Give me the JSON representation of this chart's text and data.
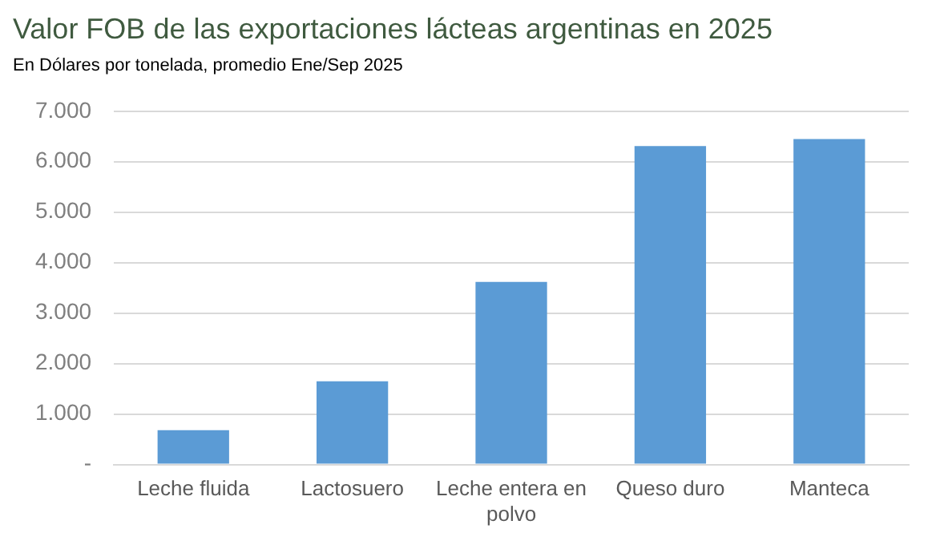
{
  "chart_data": {
    "type": "bar",
    "title": "Valor FOB de las exportaciones lácteas argentinas en 2025",
    "subtitle": "En Dólares por tonelada, promedio Ene/Sep 2025",
    "categories": [
      "Leche fluida",
      "Lactosuero",
      "Leche entera en polvo",
      "Queso duro",
      "Manteca"
    ],
    "values": [
      680,
      1650,
      3620,
      6310,
      6450
    ],
    "color": "#5b9bd5",
    "ylim": [
      0,
      7000
    ],
    "yticks": [
      {
        "value": 0,
        "label": "-"
      },
      {
        "value": 1000,
        "label": "1.000"
      },
      {
        "value": 2000,
        "label": "2.000"
      },
      {
        "value": 3000,
        "label": "3.000"
      },
      {
        "value": 4000,
        "label": "4.000"
      },
      {
        "value": 5000,
        "label": "5.000"
      },
      {
        "value": 6000,
        "label": "6.000"
      },
      {
        "value": 7000,
        "label": "7.000"
      }
    ],
    "grid": "y"
  }
}
